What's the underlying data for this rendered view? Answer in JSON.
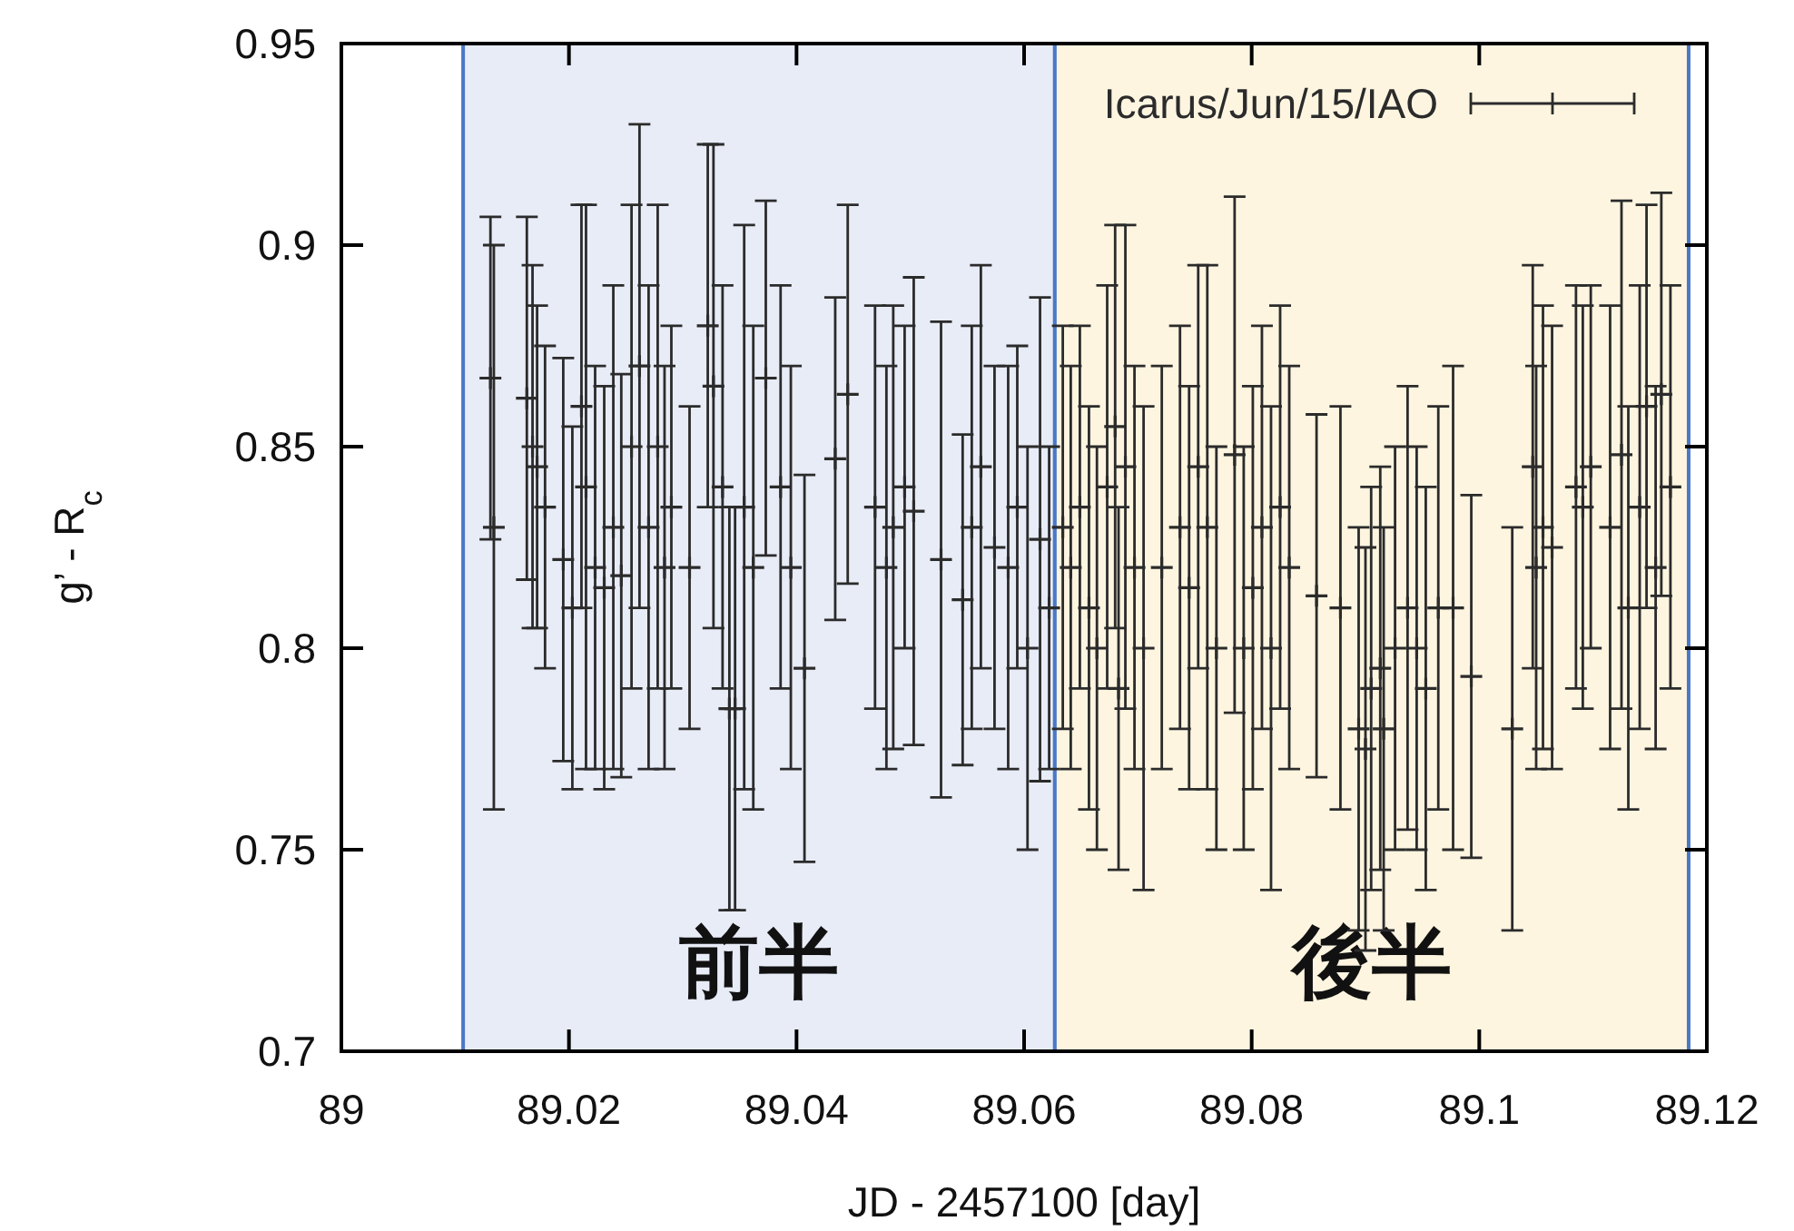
{
  "chart_data": {
    "type": "scatter",
    "xlabel": "JD - 2457100 [day]",
    "ylabel": "g’ - R$_{c}$",
    "xlim": [
      89,
      89.12
    ],
    "xticks": [
      89,
      89.02,
      89.04,
      89.06,
      89.08,
      89.1,
      89.12
    ],
    "ylim": [
      0.7,
      0.95
    ],
    "yticks": [
      0.7,
      0.75,
      0.8,
      0.85,
      0.9,
      0.95
    ],
    "legend": "top right",
    "marker": "cross",
    "bands": [
      {
        "axis": "x",
        "from": 89.0107,
        "to": 89.0627,
        "label": "前半",
        "color": "#e8ecf7"
      },
      {
        "axis": "x",
        "from": 89.0627,
        "to": 89.1184,
        "label": "後半",
        "color": "#fdf5e0"
      }
    ],
    "series": [
      {
        "name": "Icarus/Jun/15/IAO",
        "color": "#2b2b2b",
        "x": [
          89.0131,
          89.0134,
          89.0163,
          89.0168,
          89.0172,
          89.0179,
          89.0195,
          89.0203,
          89.0211,
          89.0215,
          89.0223,
          89.0231,
          89.0239,
          89.0246,
          89.0255,
          89.0262,
          89.027,
          89.0278,
          89.0284,
          89.029,
          89.0306,
          89.0322,
          89.0327,
          89.0335,
          89.0341,
          89.0346,
          89.0354,
          89.0362,
          89.0373,
          89.0386,
          89.0395,
          89.0407,
          89.0434,
          89.0445,
          89.0469,
          89.0479,
          89.0485,
          89.0495,
          89.0503,
          89.0527,
          89.0546,
          89.0554,
          89.0562,
          89.0574,
          89.0586,
          89.0594,
          89.0603,
          89.0614,
          89.0622,
          89.0634,
          89.0641,
          89.0649,
          89.0657,
          89.0664,
          89.0673,
          89.068,
          89.0683,
          89.0689,
          89.0697,
          89.0705,
          89.0721,
          89.0737,
          89.0745,
          89.0753,
          89.0761,
          89.0769,
          89.0785,
          89.0793,
          89.0801,
          89.0809,
          89.0817,
          89.0825,
          89.0833,
          89.0857,
          89.0878,
          89.0894,
          89.09,
          89.0905,
          89.0913,
          89.0916,
          89.0926,
          89.0937,
          89.0945,
          89.0953,
          89.0964,
          89.0977,
          89.0993,
          89.1029,
          89.1047,
          89.105,
          89.1056,
          89.1064,
          89.1085,
          89.1091,
          89.1098,
          89.1115,
          89.1125,
          89.1131,
          89.1141,
          89.1147,
          89.1155,
          89.116,
          89.1168
        ],
        "values": [
          0.867,
          0.83,
          0.862,
          0.85,
          0.845,
          0.835,
          0.822,
          0.81,
          0.86,
          0.84,
          0.82,
          0.815,
          0.83,
          0.818,
          0.85,
          0.87,
          0.83,
          0.85,
          0.82,
          0.835,
          0.82,
          0.88,
          0.865,
          0.84,
          0.785,
          0.785,
          0.835,
          0.82,
          0.867,
          0.84,
          0.82,
          0.795,
          0.847,
          0.863,
          0.835,
          0.82,
          0.83,
          0.84,
          0.834,
          0.822,
          0.812,
          0.83,
          0.845,
          0.825,
          0.82,
          0.835,
          0.8,
          0.827,
          0.81,
          0.83,
          0.82,
          0.835,
          0.81,
          0.8,
          0.84,
          0.855,
          0.79,
          0.845,
          0.82,
          0.8,
          0.82,
          0.83,
          0.815,
          0.845,
          0.83,
          0.8,
          0.848,
          0.8,
          0.815,
          0.83,
          0.8,
          0.835,
          0.82,
          0.813,
          0.81,
          0.78,
          0.775,
          0.79,
          0.795,
          0.78,
          0.8,
          0.81,
          0.8,
          0.79,
          0.81,
          0.81,
          0.793,
          0.78,
          0.845,
          0.82,
          0.83,
          0.825,
          0.84,
          0.835,
          0.845,
          0.83,
          0.848,
          0.81,
          0.835,
          0.86,
          0.82,
          0.863,
          0.84
        ],
        "errors": [
          0.04,
          0.07,
          0.045,
          0.045,
          0.04,
          0.04,
          0.05,
          0.045,
          0.05,
          0.07,
          0.05,
          0.05,
          0.06,
          0.05,
          0.06,
          0.06,
          0.06,
          0.06,
          0.05,
          0.045,
          0.04,
          0.045,
          0.06,
          0.05,
          0.05,
          0.05,
          0.07,
          0.06,
          0.044,
          0.05,
          0.05,
          0.048,
          0.04,
          0.047,
          0.05,
          0.05,
          0.055,
          0.04,
          0.058,
          0.059,
          0.041,
          0.05,
          0.05,
          0.045,
          0.05,
          0.04,
          0.05,
          0.06,
          0.04,
          0.05,
          0.05,
          0.045,
          0.05,
          0.05,
          0.05,
          0.05,
          0.045,
          0.06,
          0.05,
          0.06,
          0.05,
          0.05,
          0.05,
          0.05,
          0.065,
          0.05,
          0.064,
          0.05,
          0.05,
          0.05,
          0.06,
          0.05,
          0.05,
          0.045,
          0.05,
          0.05,
          0.05,
          0.05,
          0.05,
          0.05,
          0.05,
          0.055,
          0.05,
          0.05,
          0.05,
          0.06,
          0.045,
          0.05,
          0.05,
          0.05,
          0.055,
          0.055,
          0.05,
          0.05,
          0.045,
          0.055,
          0.063,
          0.05,
          0.055,
          0.05,
          0.045,
          0.05,
          0.05
        ]
      }
    ]
  }
}
